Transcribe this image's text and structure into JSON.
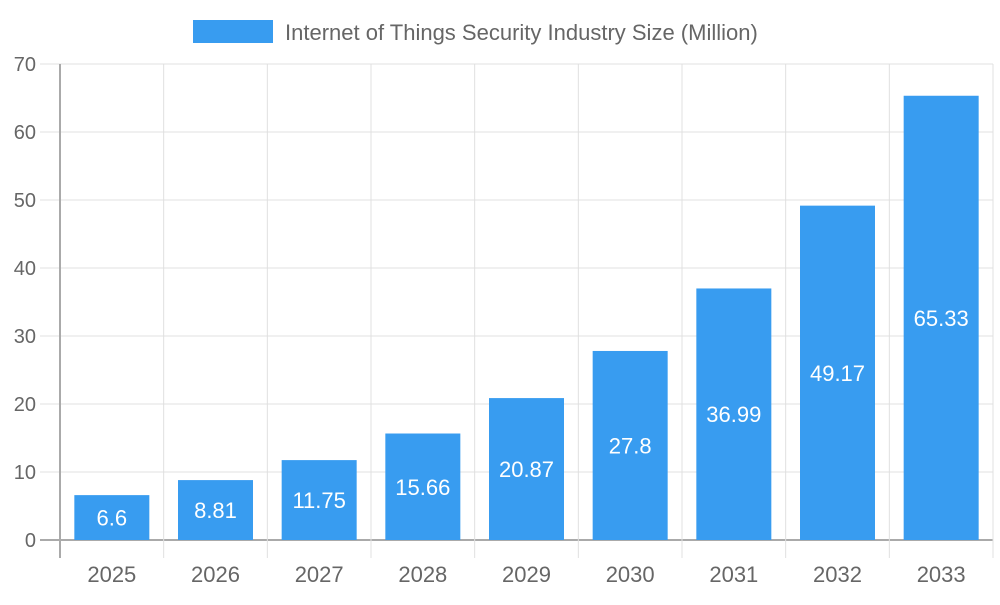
{
  "chart_data": {
    "type": "bar",
    "categories": [
      "2025",
      "2026",
      "2027",
      "2028",
      "2029",
      "2030",
      "2031",
      "2032",
      "2033"
    ],
    "series": [
      {
        "name": "Internet of Things Security Industry Size (Million)",
        "values": [
          6.6,
          8.81,
          11.75,
          15.66,
          20.87,
          27.8,
          36.99,
          49.17,
          65.33
        ]
      }
    ],
    "ylim": [
      0,
      70
    ],
    "yticks": [
      0,
      10,
      20,
      30,
      40,
      50,
      60,
      70
    ],
    "grid": true,
    "legend": "top",
    "data_labels": true,
    "colors": {
      "bar": "#389cf0",
      "text": "#666666",
      "grid": "#e0e0e0",
      "axis": "#aaaaaa",
      "label": "#ffffff"
    }
  }
}
